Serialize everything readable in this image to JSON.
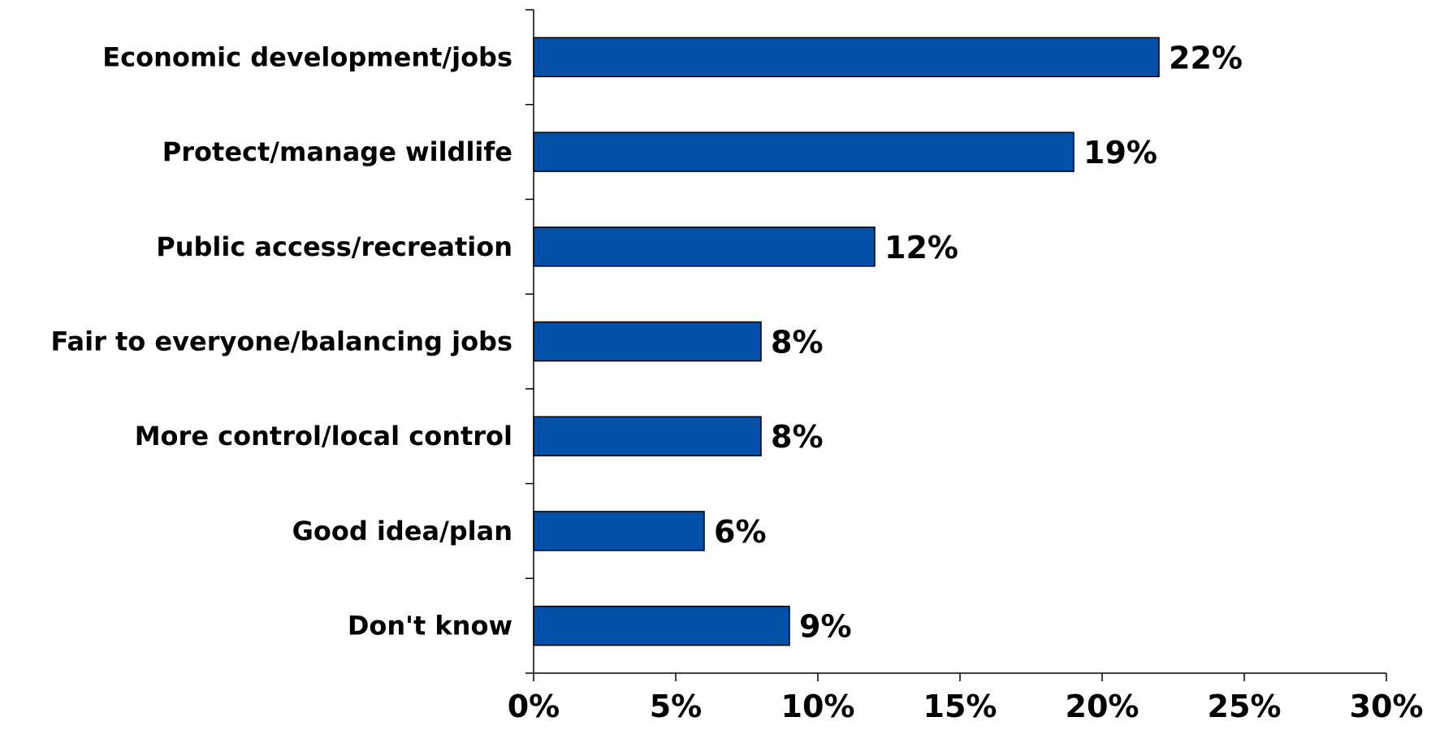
{
  "chart_data": {
    "type": "bar",
    "orientation": "horizontal",
    "categories": [
      "Economic development/jobs",
      "Protect/manage wildlife",
      "Public access/recreation",
      "Fair to everyone/balancing jobs",
      "More control/local control",
      "Good idea/plan",
      "Don't know"
    ],
    "values": [
      22,
      19,
      12,
      8,
      8,
      6,
      9
    ],
    "value_labels": [
      "22%",
      "19%",
      "12%",
      "8%",
      "8%",
      "6%",
      "9%"
    ],
    "x_ticks": [
      "0%",
      "5%",
      "10%",
      "15%",
      "20%",
      "25%",
      "30%"
    ],
    "xlim": [
      0,
      30
    ],
    "grid": false,
    "bar_color": "#0050A8"
  }
}
